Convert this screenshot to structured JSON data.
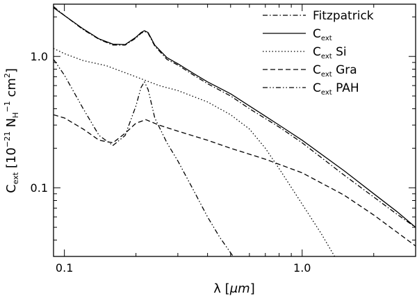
{
  "chart_data": {
    "type": "line",
    "xscale": "log",
    "yscale": "log",
    "xlim": [
      0.09,
      3.0
    ],
    "ylim": [
      0.03,
      2.5
    ],
    "xticks": [
      0.1,
      1.0
    ],
    "xtick_labels": [
      "0.1",
      "1.0"
    ],
    "yticks": [
      0.1,
      1.0
    ],
    "ytick_labels": [
      "0.1",
      "1.0"
    ],
    "xlabel": {
      "prefix": "λ [",
      "unit": "μm",
      "suffix": "]"
    },
    "ylabel": {
      "base": "C",
      "sub": "ext",
      "text": " [10",
      "exp1": "−21",
      "mid": " N",
      "sub2": "H",
      "exp2": "−1",
      "end": " cm",
      "exp3": "2",
      "close": "]"
    },
    "legend_position": "top-right",
    "series": [
      {
        "id": "fitzpatrick",
        "name": "Fitzpatrick",
        "name_sub": "",
        "name_suffix": "",
        "dash": "dashdot",
        "x": [
          0.09,
          0.1,
          0.12,
          0.14,
          0.16,
          0.18,
          0.2,
          0.21,
          0.217,
          0.225,
          0.24,
          0.27,
          0.3,
          0.35,
          0.4,
          0.5,
          0.6,
          0.8,
          1.0,
          1.5,
          2.0,
          2.5,
          3.0
        ],
        "y": [
          2.4,
          2.05,
          1.6,
          1.35,
          1.22,
          1.22,
          1.38,
          1.5,
          1.55,
          1.5,
          1.2,
          0.95,
          0.86,
          0.72,
          0.62,
          0.5,
          0.4,
          0.29,
          0.22,
          0.125,
          0.085,
          0.063,
          0.05
        ]
      },
      {
        "id": "total",
        "name": "C",
        "name_sub": "ext",
        "name_suffix": "",
        "dash": "solid",
        "x": [
          0.09,
          0.1,
          0.12,
          0.14,
          0.16,
          0.18,
          0.2,
          0.21,
          0.217,
          0.225,
          0.24,
          0.27,
          0.3,
          0.35,
          0.4,
          0.5,
          0.6,
          0.8,
          1.0,
          1.5,
          2.0,
          2.5,
          3.0
        ],
        "y": [
          2.35,
          2.05,
          1.62,
          1.36,
          1.24,
          1.23,
          1.4,
          1.52,
          1.57,
          1.52,
          1.22,
          0.98,
          0.88,
          0.74,
          0.64,
          0.52,
          0.42,
          0.3,
          0.23,
          0.135,
          0.09,
          0.066,
          0.05
        ]
      },
      {
        "id": "si",
        "name": "C",
        "name_sub": "ext",
        "name_suffix": " Si",
        "dash": "dotted",
        "x": [
          0.09,
          0.1,
          0.12,
          0.15,
          0.2,
          0.25,
          0.3,
          0.4,
          0.5,
          0.6,
          0.7,
          0.8,
          1.0,
          1.2,
          1.4
        ],
        "y": [
          1.15,
          1.05,
          0.93,
          0.85,
          0.7,
          0.6,
          0.55,
          0.45,
          0.36,
          0.28,
          0.2,
          0.14,
          0.075,
          0.045,
          0.028
        ]
      },
      {
        "id": "gra",
        "name": "C",
        "name_sub": "ext",
        "name_suffix": " Gra",
        "dash": "dashed",
        "x": [
          0.09,
          0.1,
          0.12,
          0.14,
          0.16,
          0.18,
          0.2,
          0.22,
          0.25,
          0.3,
          0.4,
          0.5,
          0.7,
          1.0,
          1.5,
          2.0,
          2.5,
          3.0
        ],
        "y": [
          0.36,
          0.34,
          0.28,
          0.23,
          0.22,
          0.26,
          0.31,
          0.33,
          0.3,
          0.27,
          0.23,
          0.2,
          0.165,
          0.13,
          0.088,
          0.062,
          0.046,
          0.036
        ]
      },
      {
        "id": "pah",
        "name": "C",
        "name_sub": "ext",
        "name_suffix": " PAH",
        "dash": "dashdotdot",
        "x": [
          0.09,
          0.1,
          0.12,
          0.14,
          0.16,
          0.18,
          0.2,
          0.21,
          0.217,
          0.225,
          0.24,
          0.27,
          0.3,
          0.35,
          0.4,
          0.45,
          0.5,
          0.55
        ],
        "y": [
          0.95,
          0.72,
          0.4,
          0.25,
          0.21,
          0.25,
          0.42,
          0.58,
          0.64,
          0.56,
          0.34,
          0.22,
          0.16,
          0.095,
          0.06,
          0.042,
          0.032,
          0.025
        ]
      }
    ]
  }
}
